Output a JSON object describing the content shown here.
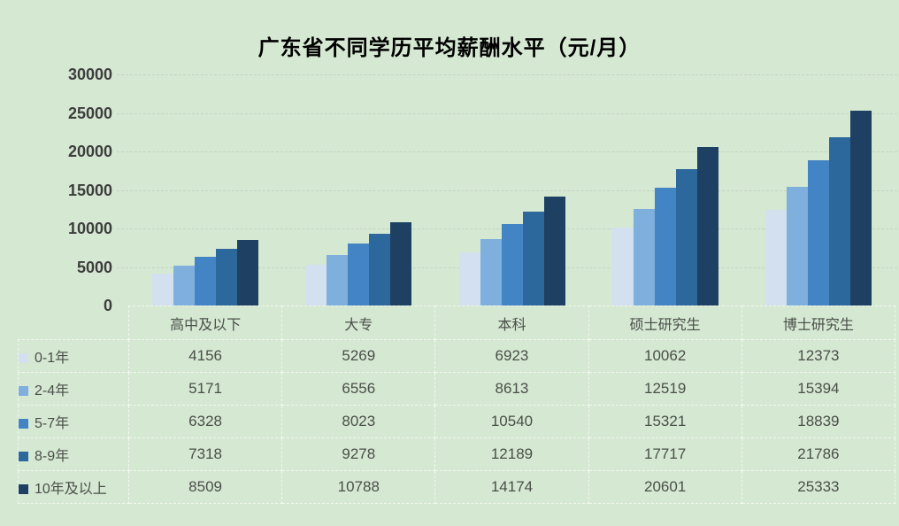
{
  "title": "广东省不同学历平均薪酬水平（元/月）",
  "chart_data": {
    "type": "bar",
    "title": "广东省不同学历平均薪酬水平（元/月）",
    "categories": [
      "高中及以下",
      "大专",
      "本科",
      "硕士研究生",
      "博士研究生"
    ],
    "series": [
      {
        "name": "0-1年",
        "color": "#d3e0ef",
        "values": [
          4156,
          5269,
          6923,
          10062,
          12373
        ]
      },
      {
        "name": "2-4年",
        "color": "#7fafdc",
        "values": [
          5171,
          6556,
          8613,
          12519,
          15394
        ]
      },
      {
        "name": "5-7年",
        "color": "#4384c5",
        "values": [
          6328,
          8023,
          10540,
          15321,
          18839
        ]
      },
      {
        "name": "8-9年",
        "color": "#2d689c",
        "values": [
          7318,
          9278,
          12189,
          17717,
          21786
        ]
      },
      {
        "name": "10年及以上",
        "color": "#1d4063",
        "values": [
          8509,
          10788,
          14174,
          20601,
          25333
        ]
      }
    ],
    "xlabel": "",
    "ylabel": "",
    "ylim": [
      0,
      30000
    ],
    "ytick_interval": 5000,
    "yticks": [
      "30000",
      "25000",
      "20000",
      "15000",
      "10000",
      "5000",
      "0"
    ],
    "grid": "horizontal-dashed",
    "legend_position": "data-table-left-column",
    "data_table_shown": true
  },
  "colors": {
    "background": "#d5e8d2",
    "gridline": "#c4d4c4",
    "table_border": "#f2f8f0",
    "title_text": "#000000",
    "axis_text": "#3d3d3d",
    "table_text": "#4a4f4a"
  }
}
